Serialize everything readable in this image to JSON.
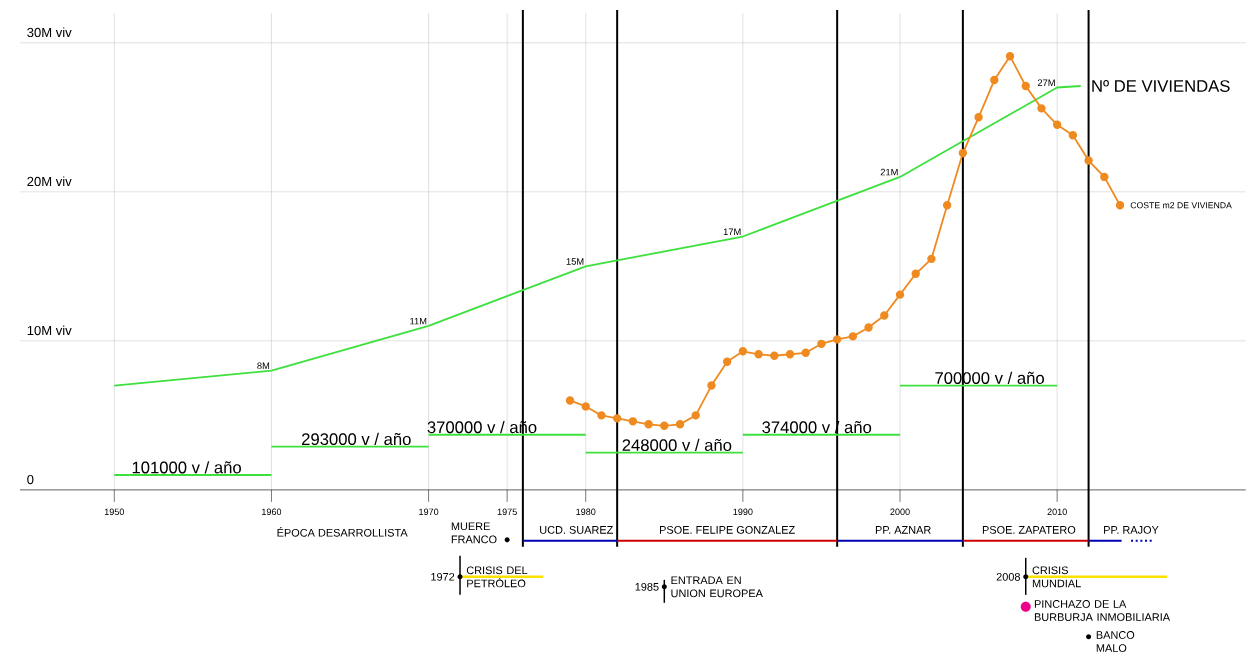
{
  "chart_data": {
    "type": "line",
    "xlim": [
      1944,
      2022
    ],
    "ylim": [
      0,
      32
    ],
    "xticks": [
      1950,
      1960,
      1970,
      1975,
      1980,
      1990,
      2000,
      2010
    ],
    "yticks": [
      0,
      {
        "value": 10,
        "label": "10M viv"
      },
      {
        "value": 20,
        "label": "20M viv"
      },
      {
        "value": 30,
        "label": "30M viv"
      }
    ],
    "grid": true,
    "marker": "none",
    "series": [
      {
        "name": "Nº DE VIVIENDAS",
        "color": "#3ee03e",
        "x": [
          1950,
          1960,
          1970,
          1980,
          1990,
          2000,
          2010,
          2011.5
        ],
        "values": [
          7,
          8,
          11,
          15,
          17,
          21,
          27,
          27.1
        ],
        "value_labels": [
          null,
          "8M",
          "11M",
          "15M",
          "17M",
          "21M",
          "27M",
          null
        ]
      },
      {
        "name": "COSTE m2 DE VIVIENDA",
        "color": "#ef8a20",
        "marker": "circle",
        "x": [
          1979,
          1980,
          1981,
          1982,
          1983,
          1984,
          1985,
          1986,
          1987,
          1988,
          1989,
          1990,
          1991,
          1992,
          1993,
          1994,
          1995,
          1996,
          1997,
          1998,
          1999,
          2000,
          2001,
          2002,
          2003,
          2004,
          2005,
          2006,
          2007,
          2008,
          2009,
          2010,
          2011,
          2012,
          2013,
          2014
        ],
        "values": [
          6.0,
          5.6,
          5.0,
          4.8,
          4.6,
          4.4,
          4.3,
          4.4,
          5.0,
          7.0,
          8.6,
          9.3,
          9.1,
          9.0,
          9.1,
          9.2,
          9.8,
          10.1,
          10.3,
          10.9,
          11.7,
          13.1,
          14.5,
          15.5,
          19.1,
          22.6,
          25.0,
          27.5,
          29.1,
          27.1,
          25.6,
          24.5,
          23.8,
          22.1,
          21.0,
          19.1
        ]
      },
      {
        "color": "#3ee03e",
        "x": [
          1950,
          1960
        ],
        "values": [
          1.0,
          1.0
        ]
      },
      {
        "color": "#3ee03e",
        "x": [
          1960,
          1970
        ],
        "values": [
          2.9,
          2.9
        ]
      },
      {
        "color": "#3ee03e",
        "x": [
          1970,
          1980
        ],
        "values": [
          3.7,
          3.7
        ]
      },
      {
        "color": "#3ee03e",
        "x": [
          1980,
          1990
        ],
        "values": [
          2.5,
          2.5
        ]
      },
      {
        "color": "#3ee03e",
        "x": [
          1990,
          2000
        ],
        "values": [
          3.7,
          3.7
        ]
      },
      {
        "color": "#3ee03e",
        "x": [
          2000,
          2010
        ],
        "values": [
          7.0,
          7.0
        ]
      }
    ],
    "ref_lines": [
      {
        "axis": "x",
        "value": 1976,
        "color": "#000000"
      },
      {
        "axis": "x",
        "value": 1982,
        "color": "#000000"
      },
      {
        "axis": "x",
        "value": 1996,
        "color": "#000000"
      },
      {
        "axis": "x",
        "value": 2004,
        "color": "#000000"
      },
      {
        "axis": "x",
        "value": 2012,
        "color": "#000000"
      }
    ],
    "annotations": [
      {
        "text": "101000 v / año",
        "x": 1954.6,
        "y": 1.0
      },
      {
        "text": "293000 v / año",
        "x": 1965.4,
        "y": 2.9
      },
      {
        "text": "370000 v / año",
        "x": 1973.4,
        "y": 3.7
      },
      {
        "text": "248000 v / año",
        "x": 1985.8,
        "y": 2.5
      },
      {
        "text": "374000 v / año",
        "x": 1994.7,
        "y": 3.7
      },
      {
        "text": "700000 v / año",
        "x": 2005.7,
        "y": 7.0
      },
      "UCD. SUAREZ",
      "PSOE. FELIPE GONZALEZ",
      "PP. AZNAR",
      "PSOE. ZAPATERO",
      "PP. RAJOY",
      "ÉPOCA DESARROLLISTA",
      "MUERE FRANCO",
      "1972",
      "CRISIS DEL PETRÓLEO",
      "1985",
      "ENTRADA EN UNION EUROPEA",
      "2008",
      "CRISIS MUNDIAL",
      "PINCHAZO DE LA BURBURJA INMOBILIARIA",
      "BANCO MALO"
    ]
  }
}
